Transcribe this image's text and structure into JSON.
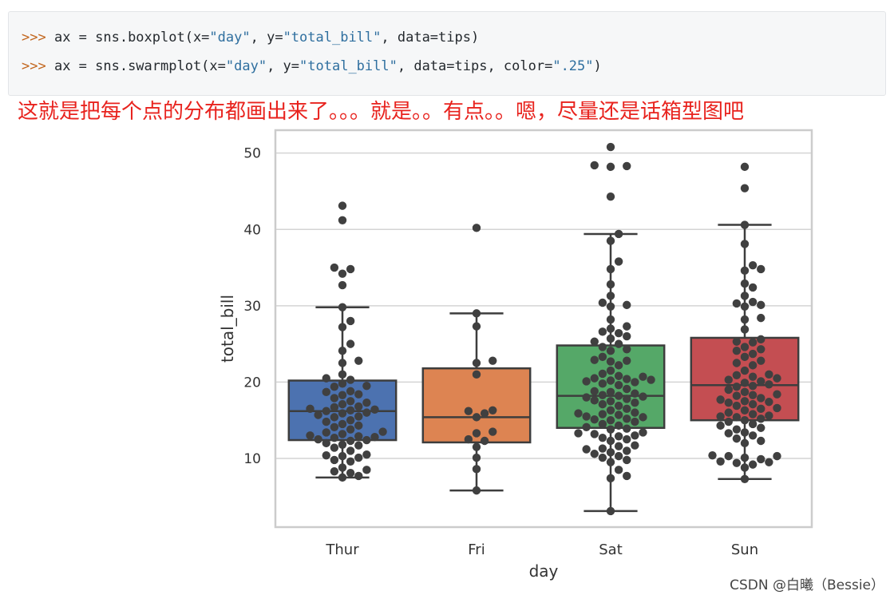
{
  "code": {
    "prompt": ">>>",
    "line1": {
      "a": " ax = sns.boxplot(x=",
      "s1": "\"day\"",
      "b": ", y=",
      "s2": "\"total_bill\"",
      "c": ", data=tips)"
    },
    "line2": {
      "a": " ax = sns.swarmplot(x=",
      "s1": "\"day\"",
      "b": ", y=",
      "s2": "\"total_bill\"",
      "c": ", data=tips, color=",
      "s3": "\".25\"",
      "d": ")"
    }
  },
  "annotation": "这就是把每个点的分布都画出来了。。。就是。。有点。。嗯，尽量还是话箱型图吧",
  "watermark": "CSDN @白曦（Bessie）",
  "chart_data": {
    "type": "box+swarm",
    "xlabel": "day",
    "ylabel": "total_bill",
    "ylim": [
      1,
      53
    ],
    "yticks": [
      10,
      20,
      30,
      40,
      50
    ],
    "grid": true,
    "categories": [
      "Thur",
      "Fri",
      "Sat",
      "Sun"
    ],
    "colors": [
      "#4c72b0",
      "#dd8452",
      "#55a868",
      "#c44e52"
    ],
    "point_color": "#404040",
    "boxes": [
      {
        "min": 7.5,
        "q1": 12.4,
        "median": 16.2,
        "q3": 20.2,
        "max": 29.8
      },
      {
        "min": 5.8,
        "q1": 12.1,
        "median": 15.4,
        "q3": 21.8,
        "max": 29.0
      },
      {
        "min": 3.1,
        "q1": 14.0,
        "median": 18.2,
        "q3": 24.8,
        "max": 39.4
      },
      {
        "min": 7.3,
        "q1": 15.0,
        "median": 19.6,
        "q3": 25.8,
        "max": 40.6
      }
    ],
    "points": [
      [
        43.1,
        41.2,
        35.0,
        34.8,
        34.2,
        32.7,
        29.8,
        28.0,
        27.2,
        25.0,
        24.1,
        22.8,
        22.5,
        21.0,
        20.5,
        20.3,
        19.8,
        19.5,
        19.4,
        18.8,
        18.7,
        18.4,
        18.3,
        17.9,
        17.5,
        17.3,
        17.1,
        16.8,
        16.7,
        16.5,
        16.4,
        16.3,
        16.2,
        16.0,
        15.9,
        15.7,
        15.5,
        15.4,
        15.0,
        14.8,
        14.5,
        14.3,
        14.1,
        13.8,
        13.5,
        13.4,
        13.2,
        13.0,
        12.9,
        12.8,
        12.7,
        12.5,
        12.4,
        12.3,
        12.0,
        11.8,
        11.7,
        11.4,
        11.0,
        10.5,
        10.4,
        10.3,
        10.1,
        9.8,
        9.6,
        8.8,
        8.5,
        8.3,
        8.1,
        7.7,
        7.5
      ],
      [
        40.2,
        29.0,
        27.3,
        22.8,
        22.5,
        21.0,
        16.3,
        16.2,
        15.9,
        15.4,
        13.5,
        13.3,
        12.5,
        12.3,
        11.5,
        10.1,
        8.6,
        5.8
      ],
      [
        50.8,
        48.4,
        48.3,
        48.2,
        44.3,
        39.4,
        38.5,
        35.8,
        34.8,
        32.8,
        31.3,
        30.4,
        30.1,
        29.9,
        28.2,
        27.3,
        27.0,
        26.6,
        26.4,
        26.0,
        25.7,
        25.3,
        25.0,
        24.6,
        24.3,
        24.1,
        23.3,
        22.9,
        22.8,
        22.7,
        22.2,
        21.5,
        21.1,
        20.8,
        20.7,
        20.5,
        20.4,
        20.3,
        20.2,
        20.1,
        20.0,
        19.8,
        19.6,
        19.1,
        18.8,
        18.7,
        18.5,
        18.3,
        18.2,
        18.1,
        18.0,
        17.8,
        17.6,
        17.5,
        17.3,
        17.1,
        16.9,
        16.5,
        16.3,
        16.0,
        15.9,
        15.8,
        15.7,
        15.5,
        15.4,
        15.2,
        15.1,
        15.0,
        14.8,
        14.5,
        14.3,
        14.1,
        13.9,
        13.8,
        13.4,
        13.3,
        13.2,
        13.0,
        12.9,
        12.7,
        12.5,
        12.3,
        11.7,
        11.6,
        11.3,
        11.2,
        11.0,
        10.8,
        10.6,
        10.3,
        10.1,
        9.8,
        9.5,
        8.5,
        7.7,
        7.4,
        3.1
      ],
      [
        48.2,
        45.4,
        40.6,
        38.1,
        35.3,
        34.8,
        34.6,
        32.9,
        32.4,
        31.3,
        30.5,
        30.3,
        30.1,
        29.9,
        28.4,
        28.2,
        26.9,
        25.6,
        25.3,
        25.2,
        24.6,
        24.3,
        24.1,
        23.7,
        23.3,
        22.8,
        22.5,
        22.2,
        21.5,
        21.0,
        20.9,
        20.7,
        20.5,
        20.3,
        20.1,
        19.9,
        19.7,
        19.5,
        19.4,
        19.0,
        18.7,
        18.4,
        18.3,
        18.2,
        17.9,
        17.7,
        17.5,
        17.4,
        17.3,
        17.1,
        16.9,
        16.6,
        16.5,
        16.3,
        16.0,
        15.8,
        15.6,
        15.5,
        15.4,
        15.2,
        15.0,
        14.8,
        14.5,
        14.3,
        14.0,
        13.8,
        13.4,
        13.3,
        13.0,
        12.6,
        12.3,
        12.0,
        10.4,
        10.3,
        10.3,
        10.1,
        9.9,
        9.6,
        9.5,
        9.4,
        9.2,
        8.8,
        7.3
      ]
    ]
  }
}
